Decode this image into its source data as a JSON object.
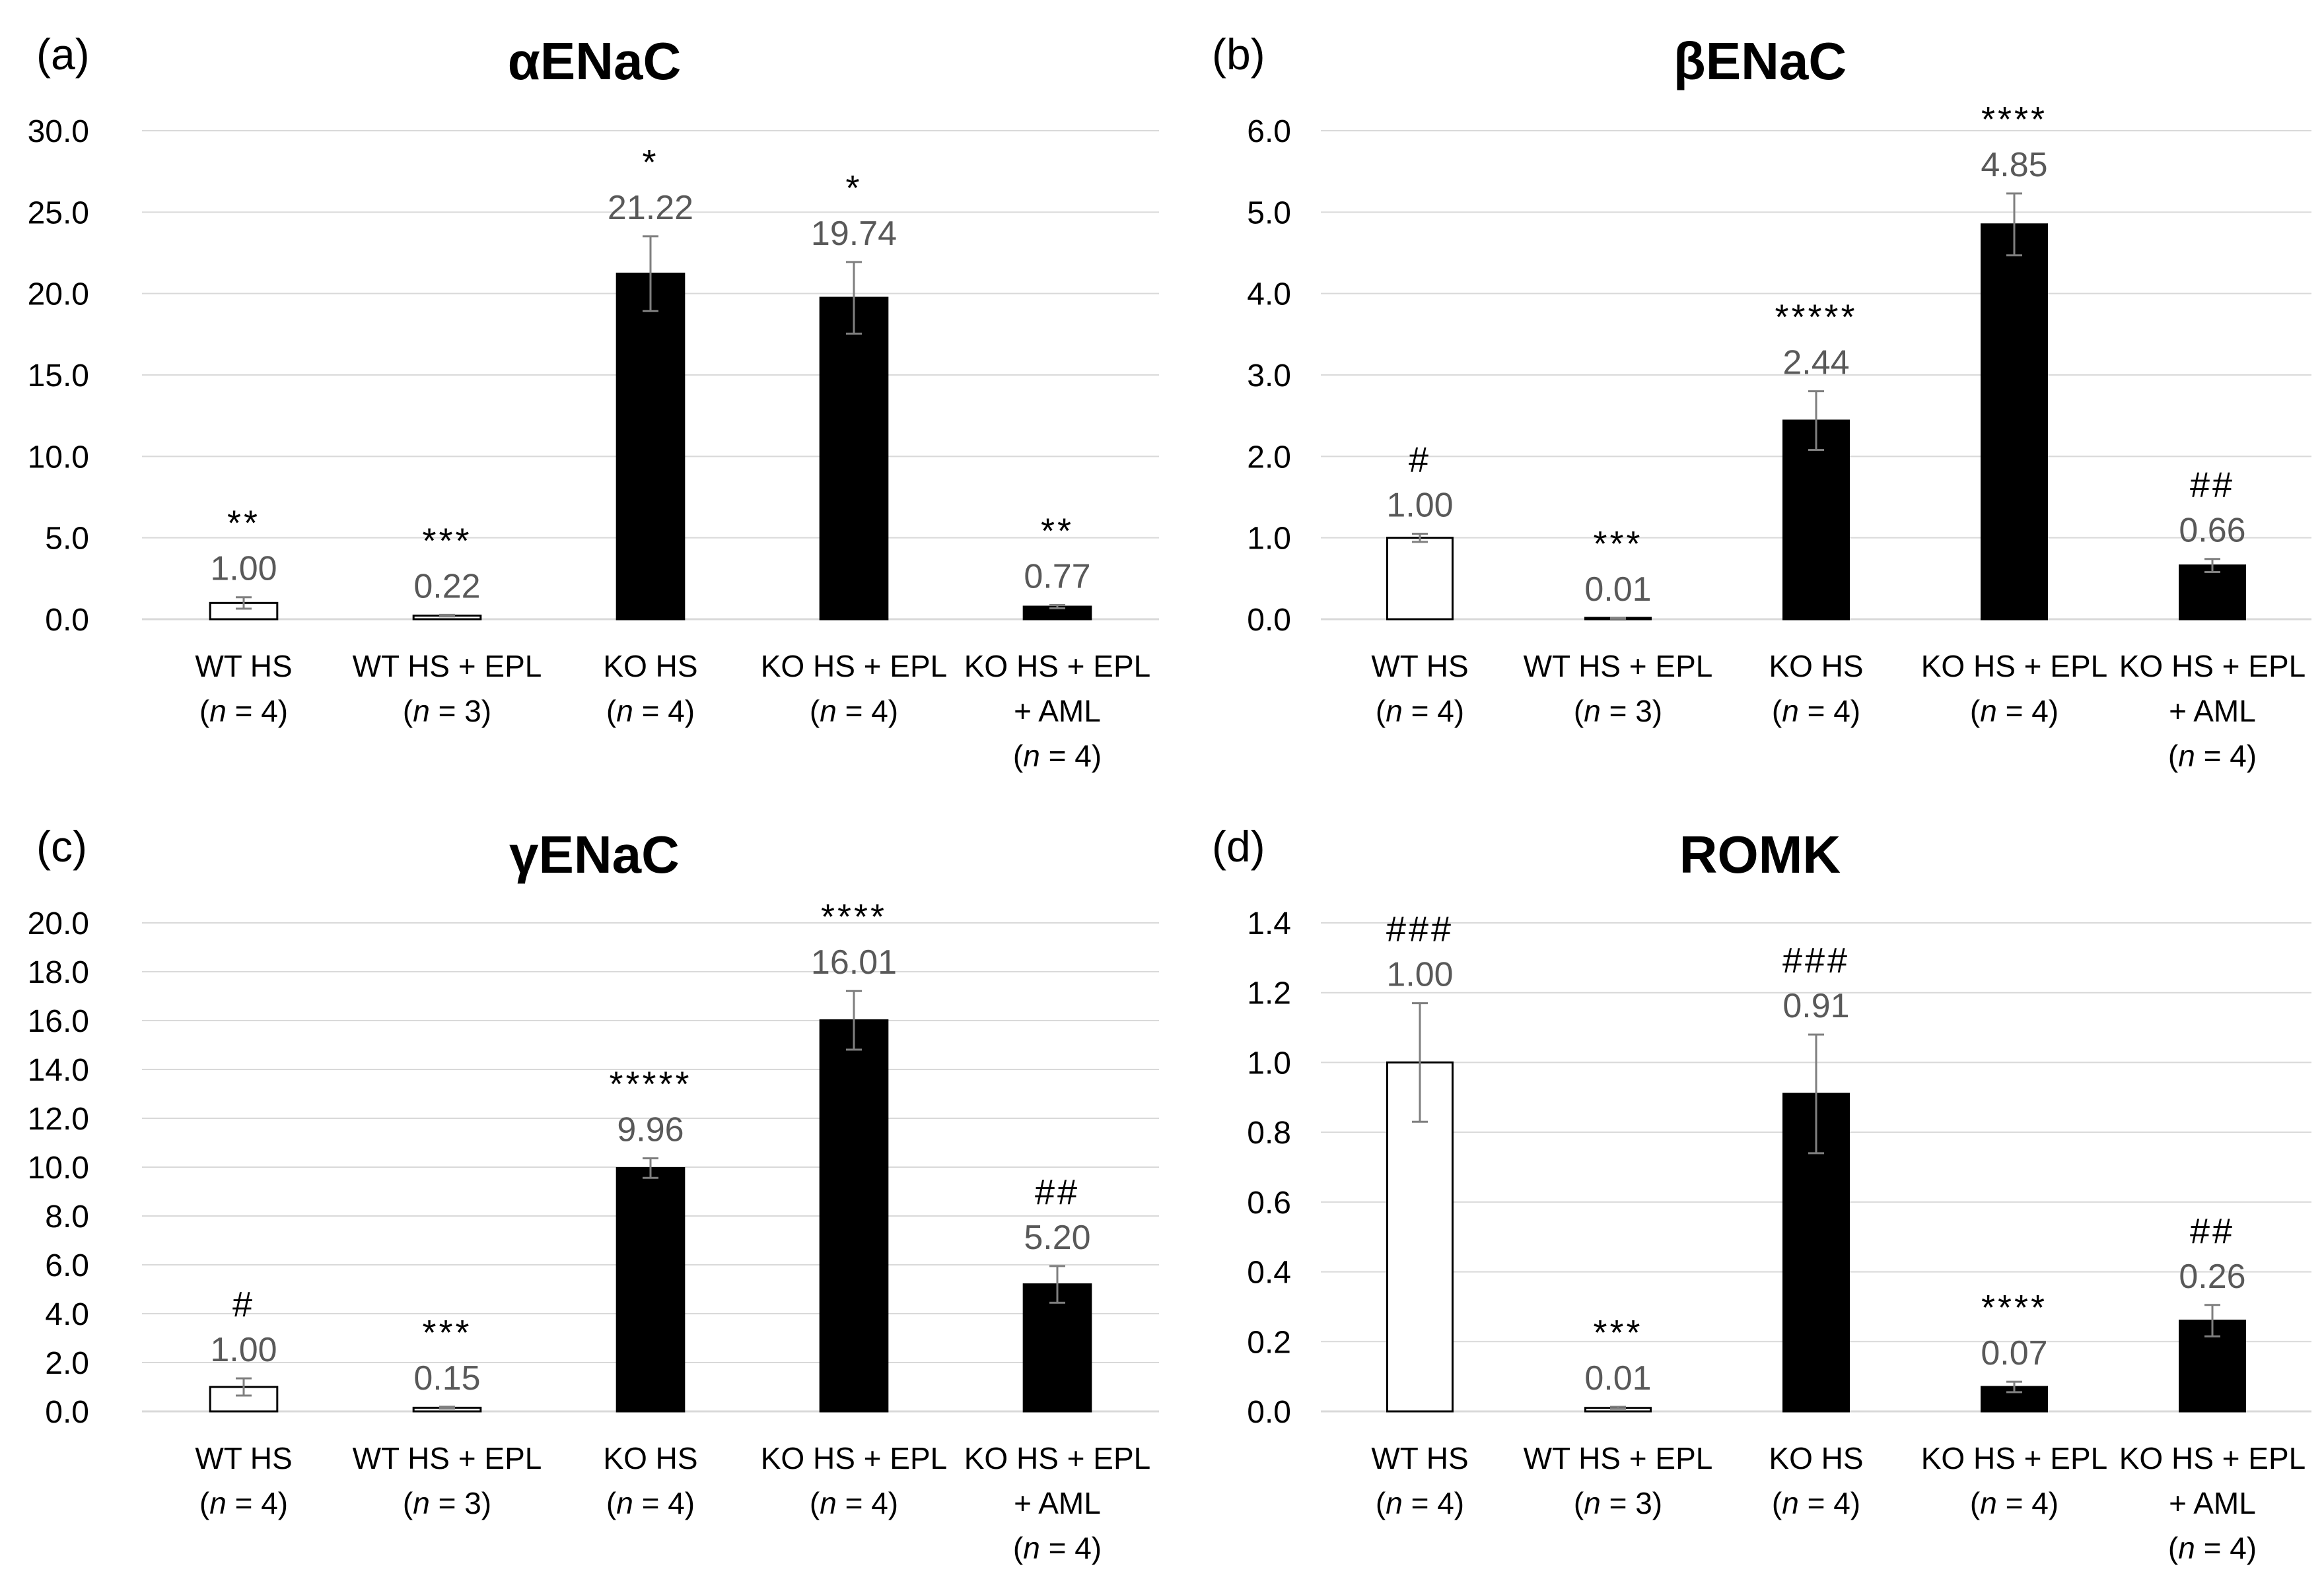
{
  "chart_data": [
    {
      "panel": "(a)",
      "type": "bar",
      "title": "αENaC",
      "ylim": [
        0,
        30
      ],
      "yticks": [
        "0.0",
        "5.0",
        "10.0",
        "15.0",
        "20.0",
        "25.0",
        "30.0"
      ],
      "categories": [
        {
          "name": "WT HS",
          "n": "(n = 4)",
          "lines": [
            "WT HS",
            "(n = 4)"
          ]
        },
        {
          "name": "WT HS + EPL",
          "n": "(n = 3)",
          "lines": [
            "WT HS + EPL",
            "(n = 3)"
          ]
        },
        {
          "name": "KO HS",
          "n": "(n = 4)",
          "lines": [
            "KO HS",
            "(n = 4)"
          ]
        },
        {
          "name": "KO HS + EPL",
          "n": "(n = 4)",
          "lines": [
            "KO HS + EPL",
            "(n = 4)"
          ]
        },
        {
          "name": "KO HS + EPL + AML",
          "n": "(n = 4)",
          "lines": [
            "KO HS + EPL",
            "+ AML",
            "(n = 4)"
          ]
        }
      ],
      "values": [
        1.0,
        0.22,
        21.22,
        19.74,
        0.77
      ],
      "value_labels": [
        "1.00",
        "0.22",
        "21.22",
        "19.74",
        "0.77"
      ],
      "errors": [
        0.35,
        0.05,
        2.3,
        2.2,
        0.1
      ],
      "significance": [
        "**",
        "***",
        "*",
        "*",
        "**"
      ],
      "fill": [
        "#ffffff",
        "#ffffff",
        "#000000",
        "#000000",
        "#000000"
      ],
      "grid": true,
      "legend": "none"
    },
    {
      "panel": "(b)",
      "type": "bar",
      "title": "βENaC",
      "ylim": [
        0,
        6
      ],
      "yticks": [
        "0.0",
        "1.0",
        "2.0",
        "3.0",
        "4.0",
        "5.0",
        "6.0"
      ],
      "categories": [
        {
          "name": "WT HS",
          "n": "(n = 4)",
          "lines": [
            "WT HS",
            "(n = 4)"
          ]
        },
        {
          "name": "WT HS + EPL",
          "n": "(n = 3)",
          "lines": [
            "WT HS + EPL",
            "(n = 3)"
          ]
        },
        {
          "name": "KO HS",
          "n": "(n = 4)",
          "lines": [
            "KO HS",
            "(n = 4)"
          ]
        },
        {
          "name": "KO HS + EPL",
          "n": "(n = 4)",
          "lines": [
            "KO HS + EPL",
            "(n = 4)"
          ]
        },
        {
          "name": "KO HS + EPL + AML",
          "n": "(n = 4)",
          "lines": [
            "KO HS + EPL",
            "+ AML",
            "(n = 4)"
          ]
        }
      ],
      "values": [
        1.0,
        0.01,
        2.44,
        4.85,
        0.66
      ],
      "value_labels": [
        "1.00",
        "0.01",
        "2.44",
        "4.85",
        "0.66"
      ],
      "errors": [
        0.05,
        0.005,
        0.36,
        0.38,
        0.08
      ],
      "significance": [
        "#",
        "***",
        "*****",
        "****",
        "##"
      ],
      "fill": [
        "#ffffff",
        "#ffffff",
        "#000000",
        "#000000",
        "#000000"
      ],
      "grid": true,
      "legend": "none"
    },
    {
      "panel": "(c)",
      "type": "bar",
      "title": "γENaC",
      "ylim": [
        0,
        20
      ],
      "yticks": [
        "0.0",
        "2.0",
        "4.0",
        "6.0",
        "8.0",
        "10.0",
        "12.0",
        "14.0",
        "16.0",
        "18.0",
        "20.0"
      ],
      "categories": [
        {
          "name": "WT HS",
          "n": "(n = 4)",
          "lines": [
            "WT HS",
            "(n = 4)"
          ]
        },
        {
          "name": "WT HS + EPL",
          "n": "(n = 3)",
          "lines": [
            "WT HS + EPL",
            "(n = 3)"
          ]
        },
        {
          "name": "KO HS",
          "n": "(n = 4)",
          "lines": [
            "KO HS",
            "(n = 4)"
          ]
        },
        {
          "name": "KO HS + EPL",
          "n": "(n = 4)",
          "lines": [
            "KO HS + EPL",
            "(n = 4)"
          ]
        },
        {
          "name": "KO HS + EPL + AML",
          "n": "(n = 4)",
          "lines": [
            "KO HS + EPL",
            "+ AML",
            "(n = 4)"
          ]
        }
      ],
      "values": [
        1.0,
        0.15,
        9.96,
        16.01,
        5.2
      ],
      "value_labels": [
        "1.00",
        "0.15",
        "9.96",
        "16.01",
        "5.20"
      ],
      "errors": [
        0.35,
        0.04,
        0.4,
        1.2,
        0.75
      ],
      "significance": [
        "#",
        "***",
        "*****",
        "****",
        "##"
      ],
      "fill": [
        "#ffffff",
        "#ffffff",
        "#000000",
        "#000000",
        "#000000"
      ],
      "grid": true,
      "legend": "none"
    },
    {
      "panel": "(d)",
      "type": "bar",
      "title": "ROMK",
      "ylim": [
        0,
        1.4
      ],
      "yticks": [
        "0.0",
        "0.2",
        "0.4",
        "0.6",
        "0.8",
        "1.0",
        "1.2",
        "1.4"
      ],
      "categories": [
        {
          "name": "WT HS",
          "n": "(n = 4)",
          "lines": [
            "WT HS",
            "(n = 4)"
          ]
        },
        {
          "name": "WT HS + EPL",
          "n": "(n = 3)",
          "lines": [
            "WT HS + EPL",
            "(n = 3)"
          ]
        },
        {
          "name": "KO HS",
          "n": "(n = 4)",
          "lines": [
            "KO HS",
            "(n = 4)"
          ]
        },
        {
          "name": "KO HS + EPL",
          "n": "(n = 4)",
          "lines": [
            "KO HS + EPL",
            "(n = 4)"
          ]
        },
        {
          "name": "KO HS + EPL + AML",
          "n": "(n = 4)",
          "lines": [
            "KO HS + EPL",
            "+ AML",
            "(n = 4)"
          ]
        }
      ],
      "values": [
        1.0,
        0.01,
        0.91,
        0.07,
        0.26
      ],
      "value_labels": [
        "1.00",
        "0.01",
        "0.91",
        "0.07",
        "0.26"
      ],
      "errors": [
        0.17,
        0.003,
        0.17,
        0.015,
        0.045
      ],
      "significance": [
        "###",
        "***",
        "###",
        "****",
        "##"
      ],
      "fill": [
        "#ffffff",
        "#ffffff",
        "#000000",
        "#000000",
        "#000000"
      ],
      "grid": true,
      "legend": "none"
    }
  ]
}
